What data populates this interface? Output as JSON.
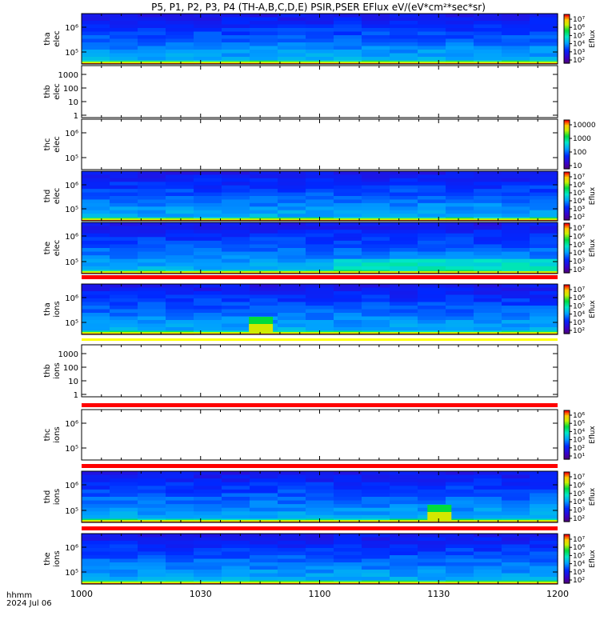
{
  "title": "P5, P1, P2, P3, P4 (TH-A,B,C,D,E) PSIR,PSER EFlux eV/(eV*cm²*sec*sr)",
  "x_axis": {
    "label_line1": "hhmm",
    "label_line2": "2024 Jul 06",
    "ticks": [
      "1000",
      "1030",
      "1100",
      "1130",
      "1200"
    ]
  },
  "chart_data": [
    {
      "type": "heatmap",
      "probe": "tha",
      "species": "elec",
      "ylabel": [
        "tha",
        "elec"
      ],
      "y_scale": "log",
      "y_ticks": [
        "10⁵",
        "10⁶"
      ],
      "has_data": true,
      "band_hot_x": [],
      "colorbar": {
        "label": "Eflux",
        "ticks": [
          "10²",
          "10³",
          "10⁴",
          "10⁵",
          "10⁶",
          "10⁷"
        ]
      }
    },
    {
      "type": "heatmap",
      "probe": "thb",
      "species": "elec",
      "ylabel": [
        "thb",
        "elec"
      ],
      "y_scale": "log",
      "y_ticks": [
        "1",
        "10",
        "100",
        "1000"
      ],
      "has_data": false,
      "colorbar": null
    },
    {
      "type": "heatmap",
      "probe": "thc",
      "species": "elec",
      "ylabel": [
        "thc",
        "elec"
      ],
      "y_scale": "log",
      "y_ticks": [
        "10⁵",
        "10⁶"
      ],
      "has_data": false,
      "colorbar": {
        "label": "",
        "ticks": [
          "10",
          "100",
          "1000",
          "10000"
        ]
      }
    },
    {
      "type": "heatmap",
      "probe": "thd",
      "species": "elec",
      "ylabel": [
        "thd",
        "elec"
      ],
      "y_scale": "log",
      "y_ticks": [
        "10⁵",
        "10⁶"
      ],
      "has_data": true,
      "band_hot_x": [],
      "colorbar": {
        "label": "Eflux",
        "ticks": [
          "10²",
          "10³",
          "10⁴",
          "10⁵",
          "10⁶",
          "10⁷"
        ]
      }
    },
    {
      "type": "heatmap",
      "probe": "the",
      "species": "elec",
      "ylabel": [
        "the",
        "elec"
      ],
      "y_scale": "log",
      "y_ticks": [
        "10⁵",
        "10⁶"
      ],
      "has_data": true,
      "band_hot_x": [],
      "colorbar": {
        "label": "Eflux",
        "ticks": [
          "10²",
          "10³",
          "10⁴",
          "10⁵",
          "10⁶",
          "10⁷"
        ]
      }
    },
    {
      "type": "heatmap",
      "probe": "tha",
      "species": "ions",
      "ylabel": [
        "tha",
        "ions"
      ],
      "y_scale": "log",
      "y_ticks": [
        "10⁵",
        "10⁶"
      ],
      "has_data": true,
      "band_hot_x": [
        1045
      ],
      "colorbar": {
        "label": "Eflux",
        "ticks": [
          "10²",
          "10³",
          "10⁴",
          "10⁵",
          "10⁶",
          "10⁷"
        ]
      }
    },
    {
      "type": "heatmap",
      "probe": "thb",
      "species": "ions",
      "ylabel": [
        "thb",
        "ions"
      ],
      "y_scale": "log",
      "y_ticks": [
        "1",
        "10",
        "100",
        "1000"
      ],
      "has_data": false,
      "colorbar": null
    },
    {
      "type": "heatmap",
      "probe": "thc",
      "species": "ions",
      "ylabel": [
        "thc",
        "ions"
      ],
      "y_scale": "log",
      "y_ticks": [
        "10⁵",
        "10⁶"
      ],
      "has_data": false,
      "colorbar": {
        "label": "Eflux",
        "ticks": [
          "10¹",
          "10²",
          "10³",
          "10⁴",
          "10⁵",
          "10⁶"
        ]
      }
    },
    {
      "type": "heatmap",
      "probe": "thd",
      "species": "ions",
      "ylabel": [
        "thd",
        "ions"
      ],
      "y_scale": "log",
      "y_ticks": [
        "10⁵",
        "10⁶"
      ],
      "has_data": true,
      "band_hot_x": [
        1130
      ],
      "colorbar": {
        "label": "Eflux",
        "ticks": [
          "10²",
          "10³",
          "10⁴",
          "10⁵",
          "10⁶",
          "10⁷"
        ]
      }
    },
    {
      "type": "heatmap",
      "probe": "the",
      "species": "ions",
      "ylabel": [
        "the",
        "ions"
      ],
      "y_scale": "log",
      "y_ticks": [
        "10⁵",
        "10⁶"
      ],
      "has_data": true,
      "band_hot_x": [],
      "colorbar": {
        "label": "Eflux",
        "ticks": [
          "10²",
          "10³",
          "10⁴",
          "10⁵",
          "10⁶",
          "10⁷"
        ]
      }
    }
  ],
  "colors": {
    "background": "#ffffff",
    "divider_red": "#ff0000",
    "divider_yellow": "#ffff00",
    "axis": "#000000"
  }
}
